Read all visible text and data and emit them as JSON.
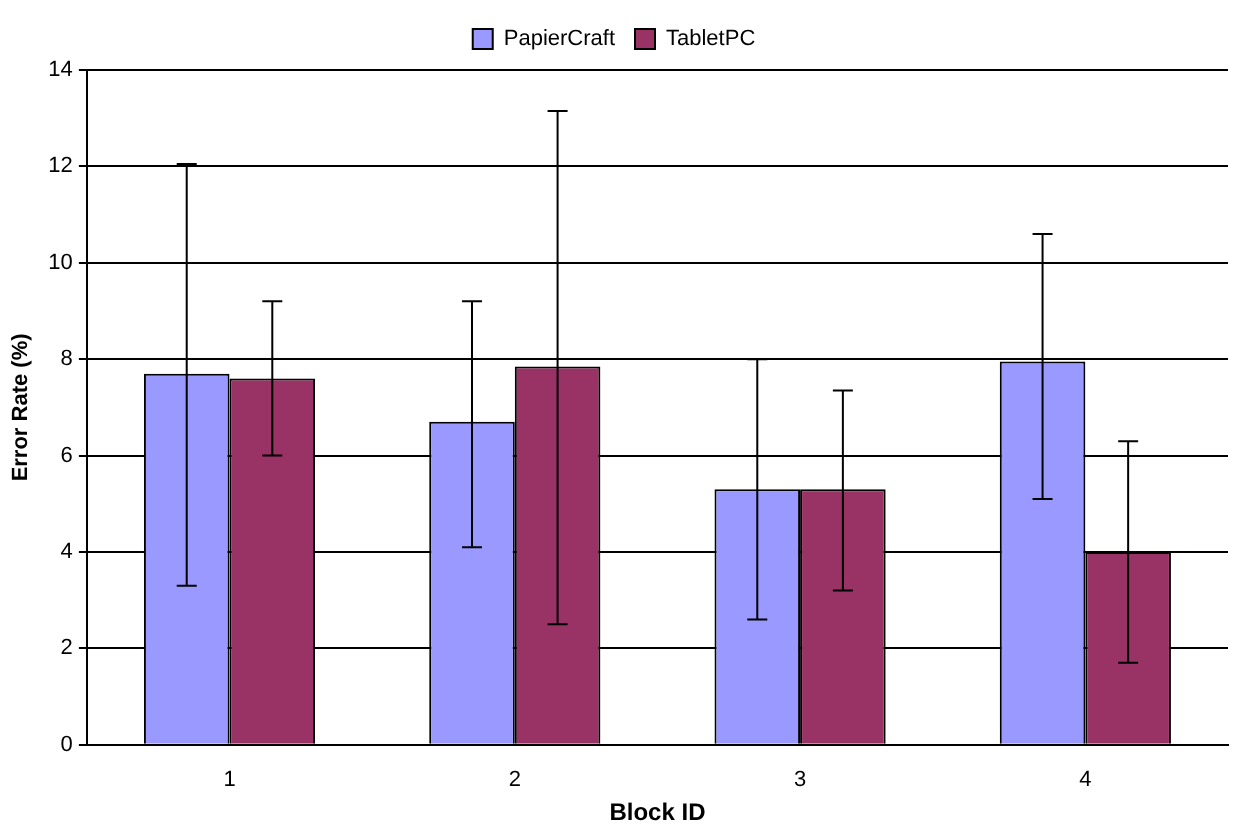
{
  "chart_data": {
    "type": "bar",
    "xlabel": "Block ID",
    "ylabel": "Error Rate (%)",
    "categories": [
      "1",
      "2",
      "3",
      "4"
    ],
    "series": [
      {
        "name": "PapierCraft",
        "color": "#9999ff",
        "values": [
          7.7,
          6.7,
          5.3,
          7.95
        ],
        "errors": [
          [
            3.3,
            12.05
          ],
          [
            4.1,
            9.2
          ],
          [
            2.6,
            8.0
          ],
          [
            5.1,
            10.6
          ]
        ]
      },
      {
        "name": "TabletPC",
        "color": "#993366",
        "values": [
          7.6,
          7.85,
          5.3,
          4.0
        ],
        "errors": [
          [
            6.0,
            9.2
          ],
          [
            2.5,
            13.15
          ],
          [
            3.2,
            7.35
          ],
          [
            1.7,
            6.3
          ]
        ]
      }
    ],
    "ylim": [
      0,
      14
    ],
    "yticks": [
      0,
      2,
      4,
      6,
      8,
      10,
      12,
      14
    ],
    "grid": "y",
    "legend": "top"
  }
}
